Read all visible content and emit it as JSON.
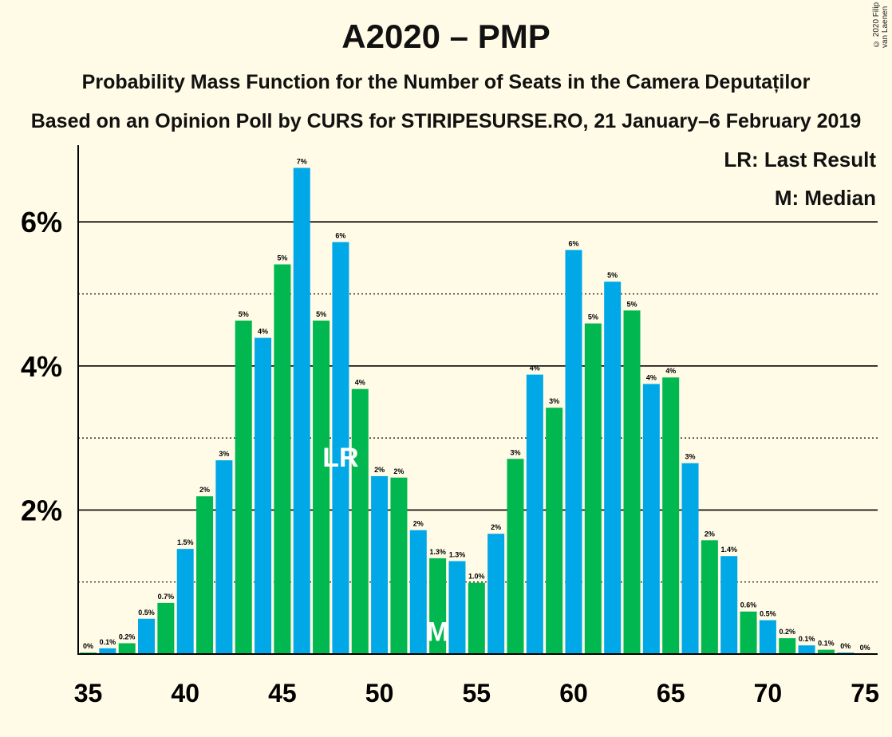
{
  "header": {
    "title": "A2020 – PMP",
    "subtitle": "Probability Mass Function for the Number of Seats in the Camera Deputaților",
    "source": "Based on an Opinion Poll by CURS for STIRIPESURSE.RO, 21 January–6 February 2019",
    "copyright": "© 2020 Filip van Laenen"
  },
  "legend": {
    "last_result": "LR: Last Result",
    "median": "M: Median"
  },
  "colors": {
    "background": "#fffbe6",
    "blue": "#00a8e8",
    "green": "#00b84f"
  },
  "chart_data": {
    "type": "bar",
    "title": "A2020 – PMP",
    "xlabel": "",
    "ylabel": "",
    "xlim": [
      35,
      75
    ],
    "ylim": [
      0,
      7.3
    ],
    "x_ticks": [
      35,
      40,
      45,
      50,
      55,
      60,
      65,
      70,
      75
    ],
    "y_ticks": [
      {
        "value": 2,
        "label": "2%"
      },
      {
        "value": 4,
        "label": "4%"
      },
      {
        "value": 6,
        "label": "6%"
      }
    ],
    "grid": "solid lines at 2%, 4%, 6%; dotted lines at 1%, 3%, 5%",
    "markers": {
      "last_result": {
        "x": 48,
        "label": "LR"
      },
      "median": {
        "x": 53,
        "label": "M"
      }
    },
    "bars": [
      {
        "x": 35,
        "value": 0.02,
        "label": "0%"
      },
      {
        "x": 36,
        "value": 0.08,
        "label": "0.1%"
      },
      {
        "x": 37,
        "value": 0.15,
        "label": "0.2%"
      },
      {
        "x": 38,
        "value": 0.49,
        "label": "0.5%"
      },
      {
        "x": 39,
        "value": 0.71,
        "label": "0.7%"
      },
      {
        "x": 40,
        "value": 1.46,
        "label": "1.5%"
      },
      {
        "x": 41,
        "value": 2.19,
        "label": "2%"
      },
      {
        "x": 42,
        "value": 2.69,
        "label": "3%"
      },
      {
        "x": 43,
        "value": 4.63,
        "label": "5%"
      },
      {
        "x": 44,
        "value": 4.39,
        "label": "4%"
      },
      {
        "x": 45,
        "value": 5.41,
        "label": "5%"
      },
      {
        "x": 46,
        "value": 6.75,
        "label": "7%"
      },
      {
        "x": 47,
        "value": 4.63,
        "label": "5%"
      },
      {
        "x": 48,
        "value": 5.72,
        "label": "6%"
      },
      {
        "x": 49,
        "value": 3.68,
        "label": "4%"
      },
      {
        "x": 50,
        "value": 2.47,
        "label": "2%"
      },
      {
        "x": 51,
        "value": 2.45,
        "label": "2%"
      },
      {
        "x": 52,
        "value": 1.72,
        "label": "2%"
      },
      {
        "x": 53,
        "value": 1.33,
        "label": "1.3%"
      },
      {
        "x": 54,
        "value": 1.29,
        "label": "1.3%"
      },
      {
        "x": 55,
        "value": 0.99,
        "label": "1.0%"
      },
      {
        "x": 56,
        "value": 1.67,
        "label": "2%"
      },
      {
        "x": 57,
        "value": 2.71,
        "label": "3%"
      },
      {
        "x": 58,
        "value": 3.88,
        "label": "4%"
      },
      {
        "x": 59,
        "value": 3.42,
        "label": "3%"
      },
      {
        "x": 60,
        "value": 5.61,
        "label": "6%"
      },
      {
        "x": 61,
        "value": 4.59,
        "label": "5%"
      },
      {
        "x": 62,
        "value": 5.17,
        "label": "5%"
      },
      {
        "x": 63,
        "value": 4.77,
        "label": "5%"
      },
      {
        "x": 64,
        "value": 3.75,
        "label": "4%"
      },
      {
        "x": 65,
        "value": 3.84,
        "label": "4%"
      },
      {
        "x": 66,
        "value": 2.65,
        "label": "3%"
      },
      {
        "x": 67,
        "value": 1.58,
        "label": "2%"
      },
      {
        "x": 68,
        "value": 1.36,
        "label": "1.4%"
      },
      {
        "x": 69,
        "value": 0.59,
        "label": "0.6%"
      },
      {
        "x": 70,
        "value": 0.47,
        "label": "0.5%"
      },
      {
        "x": 71,
        "value": 0.22,
        "label": "0.2%"
      },
      {
        "x": 72,
        "value": 0.12,
        "label": "0.1%"
      },
      {
        "x": 73,
        "value": 0.06,
        "label": "0.1%"
      },
      {
        "x": 74,
        "value": 0.02,
        "label": "0%"
      },
      {
        "x": 75,
        "value": 0.0,
        "label": "0%"
      }
    ]
  }
}
